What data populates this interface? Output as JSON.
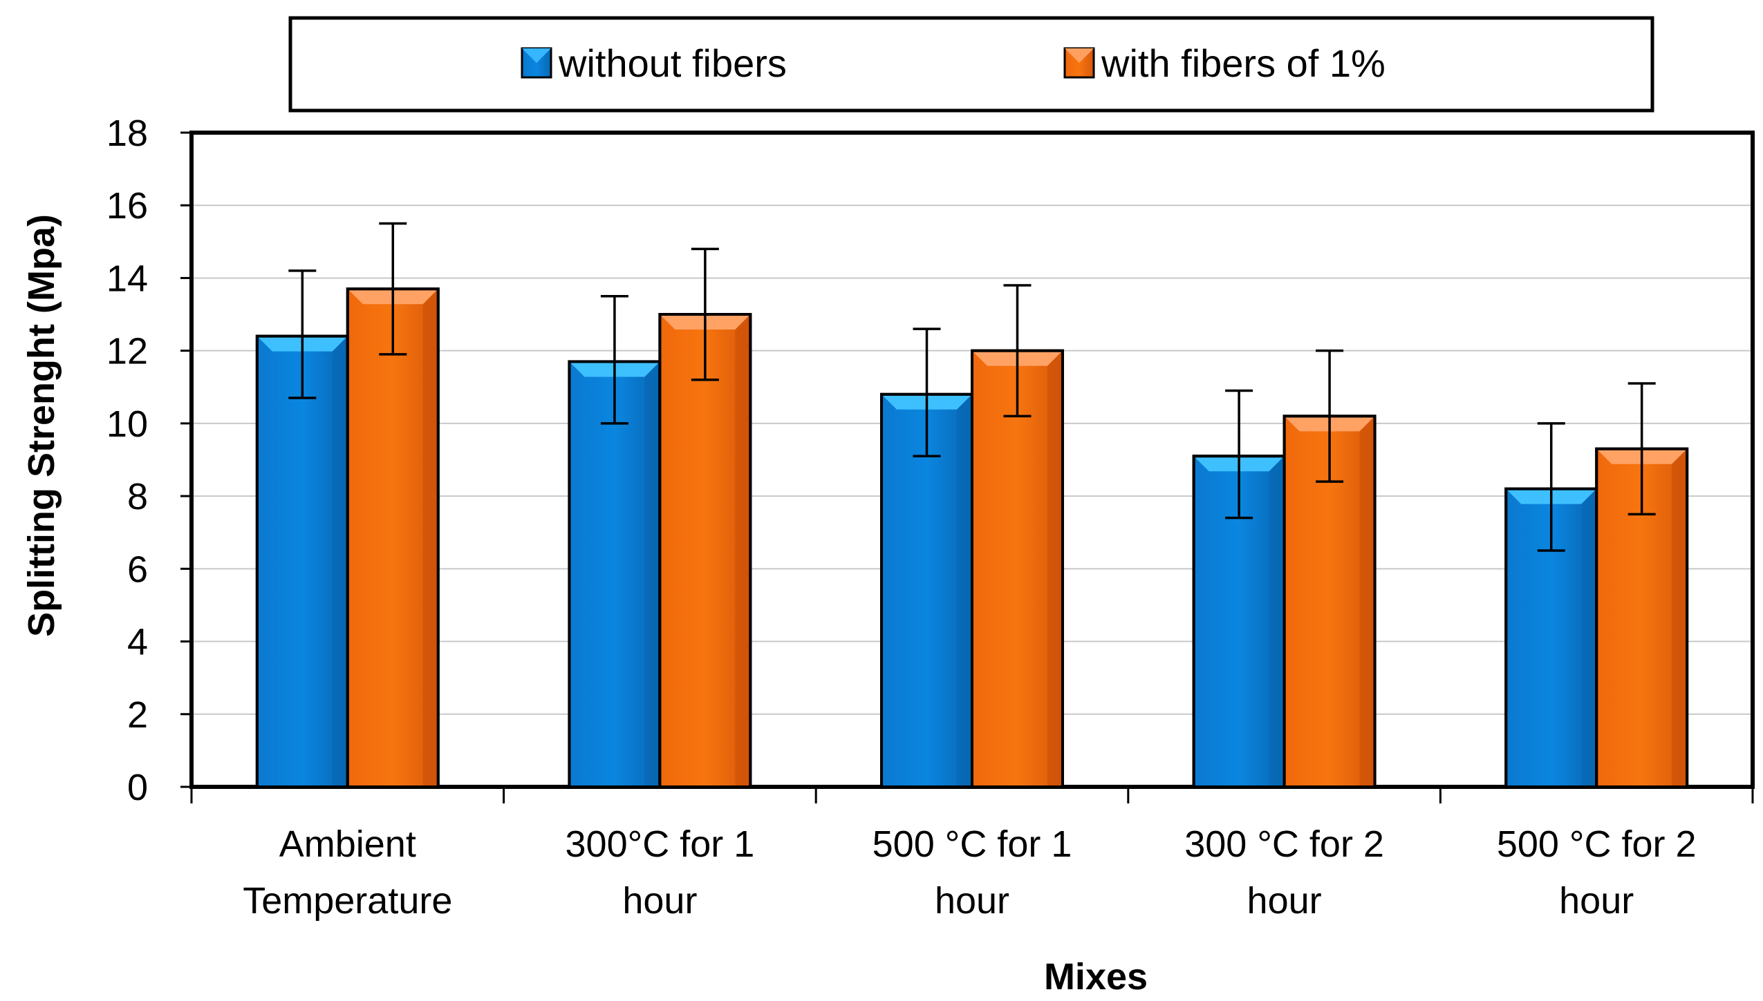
{
  "chart_data": {
    "type": "bar",
    "title": "",
    "xlabel": "Mixes",
    "ylabel": "Splitting Strenght (Mpa)",
    "ylim": [
      0,
      18
    ],
    "yticks": [
      "0",
      "2",
      "4",
      "6",
      "8",
      "10",
      "12",
      "14",
      "16",
      "18"
    ],
    "grid": true,
    "legend_position": "top",
    "categories": [
      [
        "Ambient",
        "Temperature"
      ],
      [
        "300°C  for 1",
        "hour"
      ],
      [
        "500 °C  for 1",
        "hour"
      ],
      [
        "300 °C for 2",
        "hour"
      ],
      [
        "500 °C  for 2",
        "hour"
      ]
    ],
    "series": [
      {
        "name": "without fibers",
        "color": "#0a7fd6",
        "values": [
          12.4,
          11.7,
          10.8,
          9.1,
          8.2
        ],
        "error_low": [
          10.7,
          10.0,
          9.1,
          7.4,
          6.5
        ],
        "error_high": [
          14.2,
          13.5,
          12.6,
          10.9,
          10.0
        ]
      },
      {
        "name": "with fibers  of 1%",
        "color": "#f26a0c",
        "values": [
          13.7,
          13.0,
          12.0,
          10.2,
          9.3
        ],
        "error_low": [
          11.9,
          11.2,
          10.2,
          8.4,
          7.5
        ],
        "error_high": [
          15.5,
          14.8,
          13.8,
          12.0,
          11.1
        ]
      }
    ]
  }
}
